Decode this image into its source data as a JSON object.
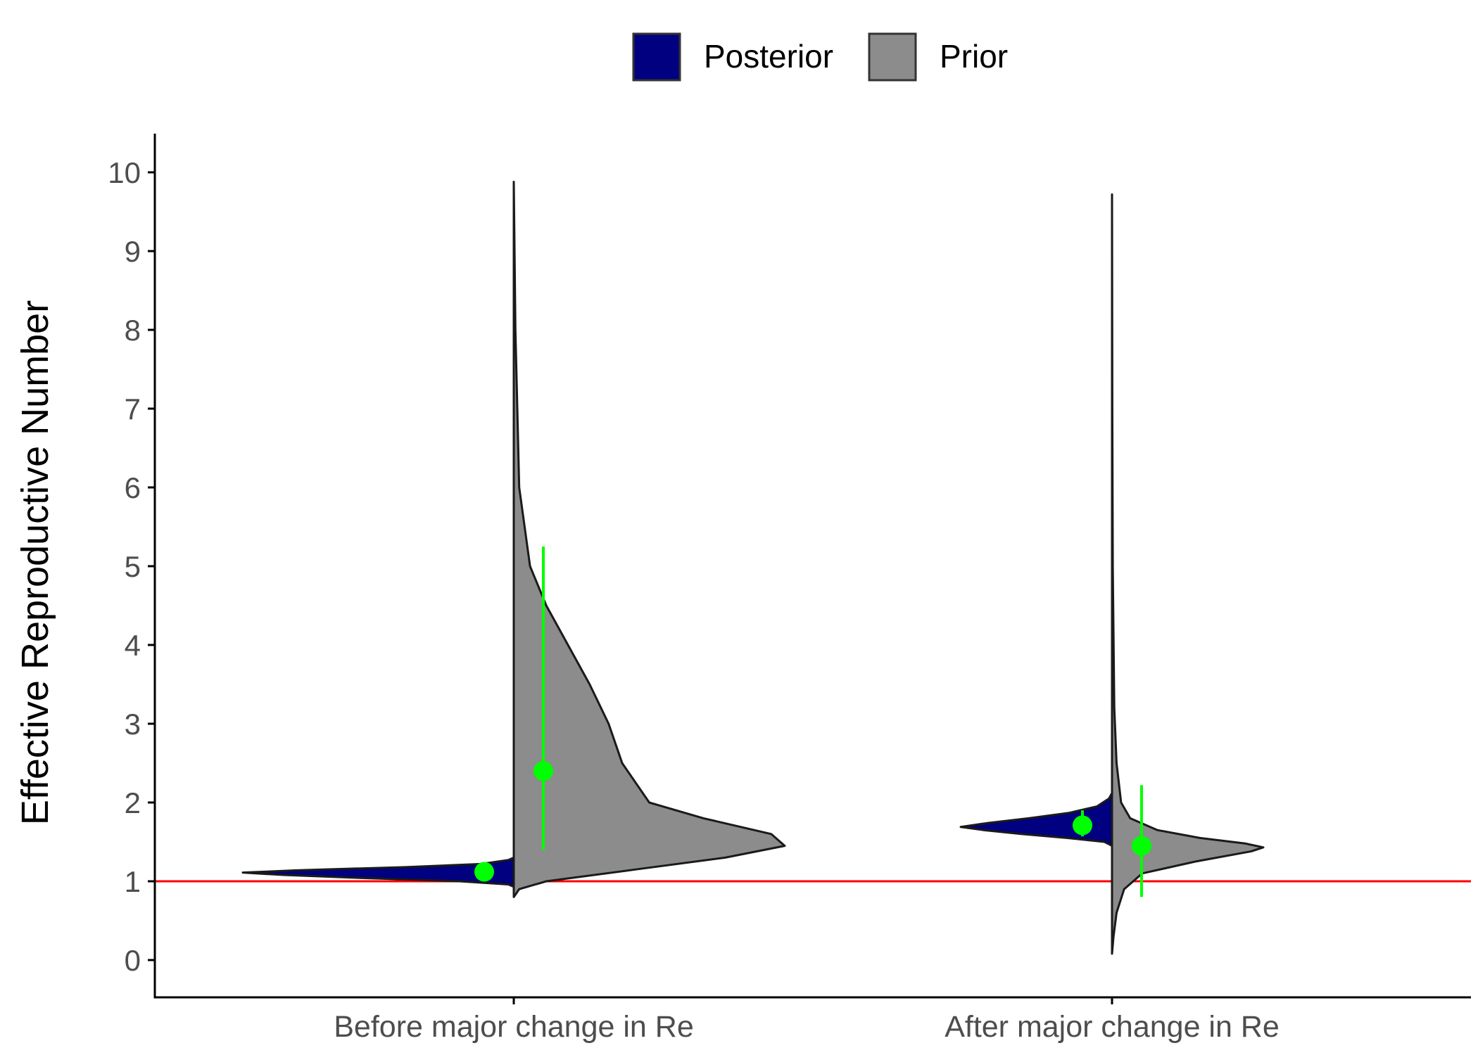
{
  "chart_data": {
    "type": "violin",
    "ylabel": "Effective Reproductive Number",
    "xlabel": "",
    "ylim": [
      -0.5,
      10.5
    ],
    "yticks": [
      0,
      1,
      2,
      3,
      4,
      5,
      6,
      7,
      8,
      9,
      10
    ],
    "ytick_labels": [
      "0",
      "1",
      "2",
      "3",
      "4",
      "5",
      "6",
      "7",
      "8",
      "9",
      "10"
    ],
    "categories": [
      "Before major change in Re",
      "After major change in Re"
    ],
    "legend": {
      "position": "top",
      "entries": [
        {
          "label": "Posterior",
          "color": "#000080"
        },
        {
          "label": "Prior",
          "color": "#8c8c8c"
        }
      ]
    },
    "reference_line": {
      "y": 1,
      "color": "#ff0000"
    },
    "point_color": "#00ff00",
    "series": [
      {
        "name": "Posterior",
        "side": "left",
        "color": "#000080",
        "violins": [
          {
            "category": "Before major change in Re",
            "profile": [
              [
                0.93,
                0
              ],
              [
                0.96,
                0.02
              ],
              [
                1.0,
                0.2
              ],
              [
                1.04,
                0.55
              ],
              [
                1.08,
                0.85
              ],
              [
                1.11,
                1.0
              ],
              [
                1.14,
                0.8
              ],
              [
                1.18,
                0.4
              ],
              [
                1.22,
                0.12
              ],
              [
                1.27,
                0.02
              ],
              [
                1.3,
                0
              ]
            ],
            "median": 1.12,
            "interval": [
              1.06,
              1.18
            ]
          },
          {
            "category": "After major change in Re",
            "profile": [
              [
                1.45,
                0
              ],
              [
                1.5,
                0.05
              ],
              [
                1.55,
                0.3
              ],
              [
                1.6,
                0.6
              ],
              [
                1.65,
                0.85
              ],
              [
                1.69,
                1.0
              ],
              [
                1.74,
                0.82
              ],
              [
                1.8,
                0.55
              ],
              [
                1.87,
                0.28
              ],
              [
                1.95,
                0.1
              ],
              [
                2.05,
                0.02
              ],
              [
                2.12,
                0
              ]
            ],
            "median": 1.71,
            "interval": [
              1.57,
              1.9
            ]
          }
        ]
      },
      {
        "name": "Prior",
        "side": "right",
        "color": "#8c8c8c",
        "violins": [
          {
            "category": "Before major change in Re",
            "profile": [
              [
                0.8,
                0
              ],
              [
                0.9,
                0.02
              ],
              [
                1.0,
                0.12
              ],
              [
                1.15,
                0.45
              ],
              [
                1.3,
                0.78
              ],
              [
                1.45,
                1.0
              ],
              [
                1.6,
                0.95
              ],
              [
                1.8,
                0.7
              ],
              [
                2.0,
                0.5
              ],
              [
                2.5,
                0.4
              ],
              [
                3.0,
                0.35
              ],
              [
                3.5,
                0.28
              ],
              [
                4.0,
                0.2
              ],
              [
                4.5,
                0.12
              ],
              [
                5.0,
                0.06
              ],
              [
                6.0,
                0.02
              ],
              [
                8.0,
                0.006
              ],
              [
                9.88,
                0
              ]
            ],
            "median": 2.4,
            "interval": [
              1.4,
              5.25
            ]
          },
          {
            "category": "After major change in Re",
            "profile": [
              [
                0.08,
                0
              ],
              [
                0.3,
                0.01
              ],
              [
                0.6,
                0.03
              ],
              [
                0.9,
                0.08
              ],
              [
                1.1,
                0.2
              ],
              [
                1.25,
                0.55
              ],
              [
                1.38,
                0.92
              ],
              [
                1.43,
                1.0
              ],
              [
                1.48,
                0.88
              ],
              [
                1.55,
                0.58
              ],
              [
                1.65,
                0.3
              ],
              [
                1.8,
                0.12
              ],
              [
                2.0,
                0.06
              ],
              [
                2.5,
                0.03
              ],
              [
                3.2,
                0.015
              ],
              [
                5.0,
                0.005
              ],
              [
                7.0,
                0.002
              ],
              [
                9.72,
                0
              ]
            ],
            "median": 1.45,
            "interval": [
              0.8,
              2.22
            ]
          }
        ]
      }
    ]
  }
}
